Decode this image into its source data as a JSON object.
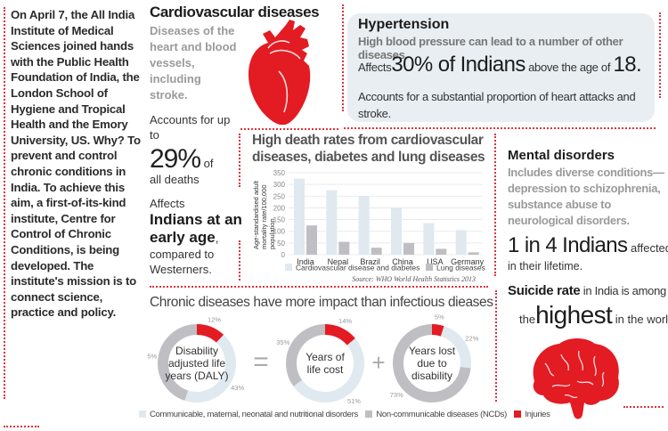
{
  "intro": {
    "text": "On April 7, the All India Institute of Medical Sciences joined hands with the Public Health Foundation of India, the London School of Hygiene and Tropical Health and the Emory University, US. Why? To prevent and control chronic conditions in India. To achieve this aim, a first-of-its-kind institute, Centre for Control of Chronic Conditions, is being developed. The institute's mission is to connect science, practice and policy."
  },
  "cardiovascular": {
    "title": "Cardiovascular diseases",
    "description": "Diseases of the heart and blood vessels, including stroke.",
    "accounts_prefix": "Accounts for up to",
    "percent": "29%",
    "percent_suffix": "of",
    "all_deaths": "all deaths",
    "affects_prefix": "Affects",
    "affects_big": "Indians at an early age",
    "affects_suffix": ", compared to Westerners.",
    "icon": "heart-icon"
  },
  "hypertension": {
    "title": "Hypertension",
    "description": "High blood pressure can lead to a number of other diseases.",
    "affects_prefix": "Affects",
    "affects_big": "30% of Indians",
    "affects_mid": "above the age of",
    "affects_age": "18.",
    "accounts": "Accounts for a substantial proportion of heart attacks and stroke."
  },
  "mental": {
    "title": "Mental disorders",
    "description": "Includes diverse conditions—depression to schizophrenia, substance abuse to neurological disorders.",
    "stat_big": "1 in 4 Indians",
    "stat_suffix": "affected",
    "stat_line2": "in their lifetime.",
    "suicide_bold": "Suicide rate",
    "suicide_rest": "in India is among",
    "highest_prefix": "the",
    "highest_big": "highest",
    "highest_suffix": "in the world.",
    "icon": "brain-icon"
  },
  "colors": {
    "accent_red": "#e31b23",
    "light_blue": "#dfe9ef",
    "grey": "#bfbfc3",
    "dotted_border": "#e0323c"
  },
  "chart_data": [
    {
      "type": "bar",
      "title": "High death rates from cardiovascular diseases, diabetes and lung diseases",
      "xlabel": "",
      "ylabel": "Age-standardised adult mortality rate/100,000 population",
      "categories": [
        "India",
        "Nepal",
        "Brazil",
        "China",
        "USA",
        "Germany"
      ],
      "series": [
        {
          "name": "Cardiovascular disease and diabetes",
          "color": "#dfe9ef",
          "values": [
            325,
            275,
            250,
            200,
            135,
            105
          ]
        },
        {
          "name": "Lung diseases",
          "color": "#bfbfc3",
          "values": [
            125,
            55,
            30,
            50,
            25,
            10
          ]
        }
      ],
      "yticks": [
        0,
        50,
        100,
        150,
        200,
        250,
        300,
        350
      ],
      "ylim": [
        0,
        350
      ],
      "grid": true,
      "legend": "bottom",
      "source": "Source: WHO World Health Statistics 2013"
    },
    {
      "type": "pie",
      "title": "Chronic diseases have more impact than infectious dieases",
      "operators": [
        "=",
        "+"
      ],
      "legend": "bottom",
      "categories": [
        "Communicable, maternal, neonatal and nutritional disorders",
        "Non-communicable diseases (NCDs)",
        "Injuries"
      ],
      "category_colors": [
        "#dfe9ef",
        "#bfbfc3",
        "#e31b23"
      ],
      "donuts": [
        {
          "label": "Disability adjusted life years (DALY)",
          "values": [
            43,
            45,
            12
          ],
          "labels": [
            "43%",
            "45%",
            "12%"
          ]
        },
        {
          "label": "Years of life cost",
          "values": [
            51,
            35,
            14
          ],
          "labels": [
            "51%",
            "35%",
            "14%"
          ]
        },
        {
          "label": "Years lost due to disability",
          "values": [
            22,
            73,
            5
          ],
          "labels": [
            "22%",
            "73%",
            "5%"
          ]
        }
      ]
    }
  ]
}
